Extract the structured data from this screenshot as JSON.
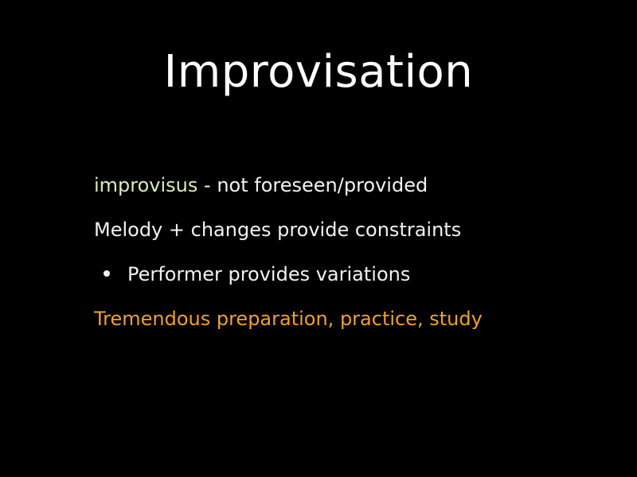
{
  "slide": {
    "title": "Improvisation",
    "lines": [
      {
        "term": "improvisus",
        "text": " - not foreseen/provided"
      },
      {
        "text": "Melody + changes provide constraints"
      },
      {
        "text": "Performer provides variations"
      },
      {
        "text": "Tremendous preparation, practice, study"
      }
    ]
  },
  "colors": {
    "background": "#000000",
    "text": "#f2f2f2",
    "term": "#d8ecb8",
    "accent": "#f0a030"
  },
  "icons": {
    "bullet": "bullet-dot-icon"
  }
}
